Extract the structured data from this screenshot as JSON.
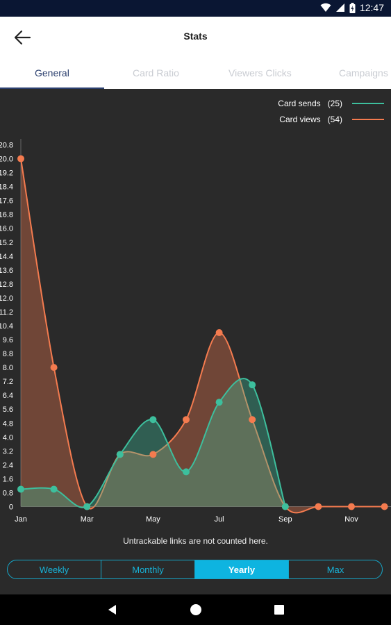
{
  "status_bar": {
    "time": "12:47"
  },
  "app_bar": {
    "title": "Stats"
  },
  "tabs": [
    {
      "label": "General",
      "active": true
    },
    {
      "label": "Card Ratio",
      "active": false
    },
    {
      "label": "Viewers Clicks",
      "active": false
    },
    {
      "label": "Campaigns",
      "active": false
    }
  ],
  "legend": [
    {
      "label": "Card sends",
      "count": "(25)",
      "color": "#3dbf9d"
    },
    {
      "label": "Card views",
      "count": "(54)",
      "color": "#f47b4f"
    }
  ],
  "chart_data": {
    "type": "area",
    "x": [
      "Jan",
      "Feb",
      "Mar",
      "Apr",
      "May",
      "Jun",
      "Jul",
      "Aug",
      "Sep",
      "Oct",
      "Nov",
      "Dec"
    ],
    "x_tick_labels": [
      "Jan",
      "Mar",
      "May",
      "Jul",
      "Sep",
      "Nov"
    ],
    "y_ticks": [
      "0",
      "0.8",
      "1.6",
      "2.4",
      "3.2",
      "4.0",
      "4.8",
      "5.6",
      "6.4",
      "7.2",
      "8.0",
      "8.8",
      "9.6",
      "10.4",
      "11.2",
      "12.0",
      "12.8",
      "13.6",
      "14.4",
      "15.2",
      "16.0",
      "16.8",
      "17.6",
      "18.4",
      "19.2",
      "20.0",
      "20.8"
    ],
    "ylim": [
      0,
      20.8
    ],
    "series": [
      {
        "name": "Card sends",
        "color": "#3dbf9d",
        "values": [
          1,
          1,
          0,
          3,
          5,
          2,
          6,
          7,
          0,
          null,
          null,
          null
        ]
      },
      {
        "name": "Card views",
        "color": "#f47b4f",
        "values": [
          20,
          8,
          0,
          3,
          3,
          5,
          10,
          5,
          0,
          0,
          0,
          0
        ]
      }
    ]
  },
  "footnote": "Untrackable links are not counted here.",
  "period_options": [
    {
      "label": "Weekly",
      "active": false
    },
    {
      "label": "Monthly",
      "active": false
    },
    {
      "label": "Yearly",
      "active": true
    },
    {
      "label": "Max",
      "active": false
    }
  ]
}
